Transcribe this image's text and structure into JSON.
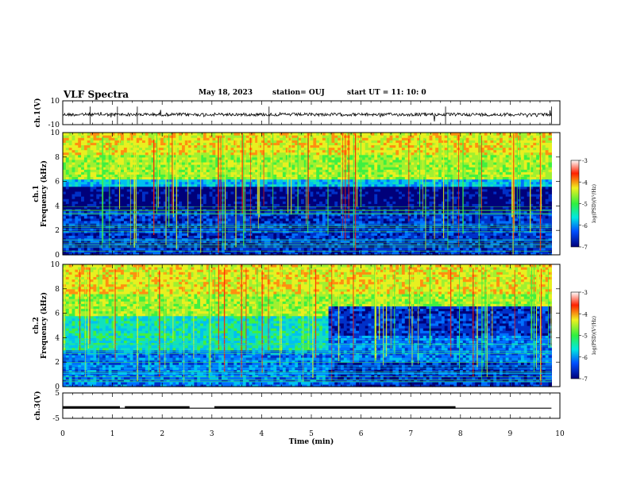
{
  "header": {
    "title": "VLF Spectra",
    "date": "May 18, 2023",
    "station": "station= OUJ",
    "start": "start  UT  =   11: 10: 0"
  },
  "chart_data": [
    {
      "type": "line",
      "panel": "ch1-waveform",
      "title": "",
      "ylabel": "ch.1(V)",
      "xlabel": "",
      "xlim": [
        0,
        10
      ],
      "ylim": [
        -10,
        10
      ],
      "yticks": [
        "10",
        "-10"
      ],
      "series": [
        {
          "x": [
            0,
            9.83
          ],
          "y": [
            -1.5,
            -1.5
          ]
        }
      ]
    },
    {
      "type": "heatmap",
      "panel": "ch1-spectrogram",
      "title": "",
      "ylabel": "ch.1 Frequency  (kHz)",
      "xlabel": "",
      "xlim": [
        0,
        10
      ],
      "ylim": [
        0,
        10
      ],
      "yticks": [
        "0",
        "2",
        "4",
        "6",
        "8",
        "10"
      ],
      "colorbar": {
        "label": "log(PSD)(V²/Hz)",
        "range": [
          -7,
          -3
        ],
        "ticks": [
          "-3",
          "-4",
          "-5",
          "-6",
          "-7"
        ],
        "colors": [
          "#00007a",
          "#0050ff",
          "#00e8e0",
          "#30f040",
          "#f0f020",
          "#ff4000",
          "#ffffff"
        ]
      },
      "description_levels": {
        "band_boundary_khz": [
          6,
          5.5
        ],
        "colors": {
          "high": "#a8e838",
          "mid": "#10c8c8",
          "low": "#000080"
        }
      }
    },
    {
      "type": "heatmap",
      "panel": "ch2-spectrogram",
      "title": "",
      "ylabel": "ch.2 Frequency  (kHz)",
      "xlabel": "",
      "xlim": [
        0,
        10
      ],
      "ylim": [
        0,
        10
      ],
      "yticks": [
        "0",
        "2",
        "4",
        "6",
        "8",
        "10"
      ],
      "colorbar": {
        "label": "log(PSD)(V²/Hz)",
        "range": [
          -7,
          -3
        ],
        "ticks": [
          "-3",
          "-4",
          "-5",
          "-6",
          "-7"
        ],
        "colors": [
          "#00007a",
          "#0050ff",
          "#00e8e0",
          "#30f040",
          "#f0f020",
          "#ff4000",
          "#ffffff"
        ]
      }
    },
    {
      "type": "line",
      "panel": "ch3-level",
      "title": "",
      "ylabel": "ch.3(V)",
      "xlabel": "Time  (min)",
      "xlim": [
        0,
        10
      ],
      "ylim": [
        -5,
        5
      ],
      "yticks": [
        "5",
        "-5"
      ],
      "xticks": [
        "0",
        "1",
        "2",
        "3",
        "4",
        "5",
        "6",
        "7",
        "8",
        "9",
        "10"
      ],
      "series": [
        {
          "x": [
            0,
            9.83
          ],
          "y": [
            -1,
            -1
          ]
        }
      ]
    }
  ]
}
